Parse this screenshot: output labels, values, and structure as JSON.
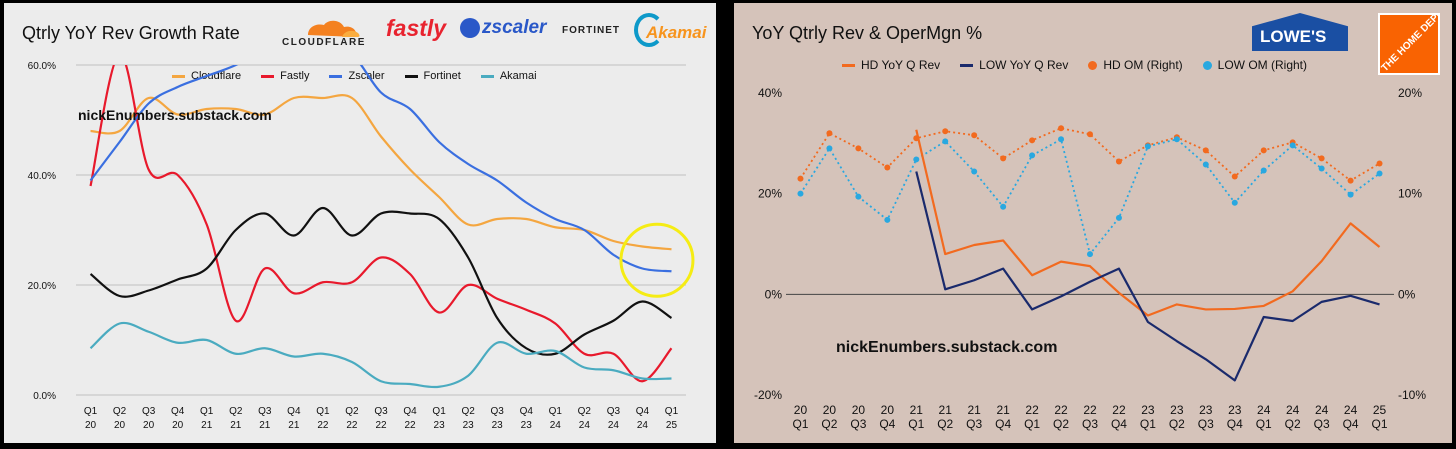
{
  "left": {
    "title": "Qtrly YoY Rev Growth Rate",
    "watermark": "nickEnumbers.substack.com",
    "logos": [
      {
        "label": "CLOUDFLARE",
        "color": "#222222"
      },
      {
        "label": "fastly",
        "color": "#e8232f"
      },
      {
        "label": "zscaler",
        "color": "#2a58c8"
      },
      {
        "label": "FORTINET",
        "color": "#222222"
      },
      {
        "label": "Akamai",
        "color": "#f7941d"
      }
    ]
  },
  "right": {
    "title": "YoY Qtrly Rev & OperMgn %",
    "watermark": "nickEnumbers.substack.com",
    "logos": [
      {
        "label": "LOWE'S",
        "color": "#1a4fa3"
      },
      {
        "label": "THE HOME DEPOT",
        "color": "#f96302"
      }
    ]
  },
  "colors": {
    "cloudflare": "#f4a640",
    "fastly": "#e8192c",
    "zscaler": "#3a6fe0",
    "fortinet": "#111111",
    "akamai": "#4aabc0",
    "hd": "#f26a1f",
    "low": "#1a2a6c",
    "hd_om": "#f26a1f",
    "low_om": "#29a8e0",
    "highlight": "#f5ec14"
  },
  "chart_data": [
    {
      "type": "line",
      "title": "Qtrly YoY Rev Growth Rate",
      "categories": [
        "Q1 20",
        "Q2 20",
        "Q3 20",
        "Q4 20",
        "Q1 21",
        "Q2 21",
        "Q3 21",
        "Q4 21",
        "Q1 22",
        "Q2 22",
        "Q3 22",
        "Q4 22",
        "Q1 23",
        "Q2 23",
        "Q3 23",
        "Q4 23",
        "Q1 24",
        "Q2 24",
        "Q3 24",
        "Q4 24",
        "Q1 25"
      ],
      "ylim": [
        0,
        60
      ],
      "yticks": [
        "0.0%",
        "20.0%",
        "40.0%",
        "60.0%"
      ],
      "grid": true,
      "legend_position": "top",
      "series": [
        {
          "name": "Cloudflare",
          "values": [
            48,
            48,
            54,
            51,
            52,
            52,
            51,
            54,
            54,
            54,
            47,
            41,
            36,
            31,
            32,
            32,
            30.5,
            30,
            28,
            27,
            26.5
          ]
        },
        {
          "name": "Fastly",
          "values": [
            38,
            62,
            41,
            40,
            31,
            13.5,
            23,
            18.5,
            20.5,
            20.5,
            25,
            22,
            15,
            20,
            17.5,
            15.5,
            13,
            7.5,
            7.5,
            2.5,
            8.5
          ]
        },
        {
          "name": "Zscaler",
          "values": [
            39,
            46,
            53,
            56,
            58,
            60,
            63,
            66,
            64,
            62,
            55,
            52,
            46,
            42,
            39,
            35,
            32,
            30,
            25.5,
            23,
            22.5
          ]
        },
        {
          "name": "Fortinet",
          "values": [
            22,
            18,
            19,
            21,
            23,
            30,
            33,
            29,
            34,
            29,
            33,
            33,
            32,
            25,
            14,
            8.5,
            7.5,
            11,
            13.5,
            17,
            14
          ]
        },
        {
          "name": "Akamai",
          "values": [
            8.5,
            13,
            11.5,
            9.5,
            10,
            7.5,
            8.5,
            7,
            7.5,
            6,
            2.5,
            2,
            1.5,
            3.5,
            9.5,
            7.5,
            8,
            5,
            4.5,
            3,
            3
          ]
        }
      ]
    },
    {
      "type": "line",
      "title": "YoY Qtrly Rev & OperMgn %",
      "categories": [
        "20 Q1",
        "20 Q2",
        "20 Q3",
        "20 Q4",
        "21 Q1",
        "21 Q2",
        "21 Q3",
        "21 Q4",
        "22 Q1",
        "22 Q2",
        "22 Q3",
        "22 Q4",
        "23 Q1",
        "23 Q2",
        "23 Q3",
        "23 Q4",
        "24 Q1",
        "24 Q2",
        "24 Q3",
        "24 Q4",
        "25 Q1"
      ],
      "ylim": [
        -20,
        40
      ],
      "yticks": [
        "-20%",
        "0%",
        "20%",
        "40%"
      ],
      "y2lim": [
        -10,
        20
      ],
      "y2ticks": [
        "-10%",
        "0%",
        "10%",
        "20%"
      ],
      "legend_position": "top",
      "series": [
        {
          "name": "HD YoY Q Rev",
          "axis": "left",
          "x": [
            "21 Q1",
            "21 Q2",
            "21 Q3",
            "21 Q4",
            "22 Q1",
            "22 Q2",
            "22 Q3",
            "22 Q4",
            "23 Q1",
            "23 Q2",
            "23 Q3",
            "23 Q4",
            "24 Q1",
            "24 Q2",
            "24 Q3",
            "24 Q4",
            "25 Q1"
          ],
          "values": [
            32.7,
            8,
            9.8,
            10.7,
            3.8,
            6.5,
            5.6,
            0.3,
            -4.2,
            -2,
            -3,
            -2.9,
            -2.3,
            0.6,
            6.6,
            14.1,
            9.4
          ]
        },
        {
          "name": "LOW YoY Q Rev",
          "axis": "left",
          "x": [
            "21 Q1",
            "21 Q2",
            "21 Q3",
            "21 Q4",
            "22 Q1",
            "22 Q2",
            "22 Q3",
            "22 Q4",
            "23 Q1",
            "23 Q2",
            "23 Q3",
            "23 Q4",
            "24 Q1",
            "24 Q2",
            "24 Q3",
            "24 Q4",
            "25 Q1"
          ],
          "values": [
            24.4,
            1,
            2.8,
            5.1,
            -3,
            -0.4,
            2.5,
            5.1,
            -5.5,
            -9.3,
            -12.9,
            -17.1,
            -4.5,
            -5.3,
            -1.5,
            -0.3,
            -2
          ]
        },
        {
          "name": "HD OM (Right)",
          "axis": "right",
          "values": [
            11.5,
            16,
            14.5,
            12.6,
            15.5,
            16.2,
            15.8,
            13.5,
            15.3,
            16.5,
            15.9,
            13.2,
            14.8,
            15.6,
            14.3,
            11.7,
            14.3,
            15.1,
            13.5,
            11.3,
            13
          ]
        },
        {
          "name": "LOW OM (Right)",
          "axis": "right",
          "values": [
            10,
            14.5,
            9.7,
            7.4,
            13.4,
            15.2,
            12.2,
            8.7,
            13.8,
            15.4,
            4,
            7.6,
            14.7,
            15.4,
            12.9,
            9.1,
            12.3,
            14.8,
            12.5,
            9.9,
            12
          ]
        }
      ]
    }
  ]
}
